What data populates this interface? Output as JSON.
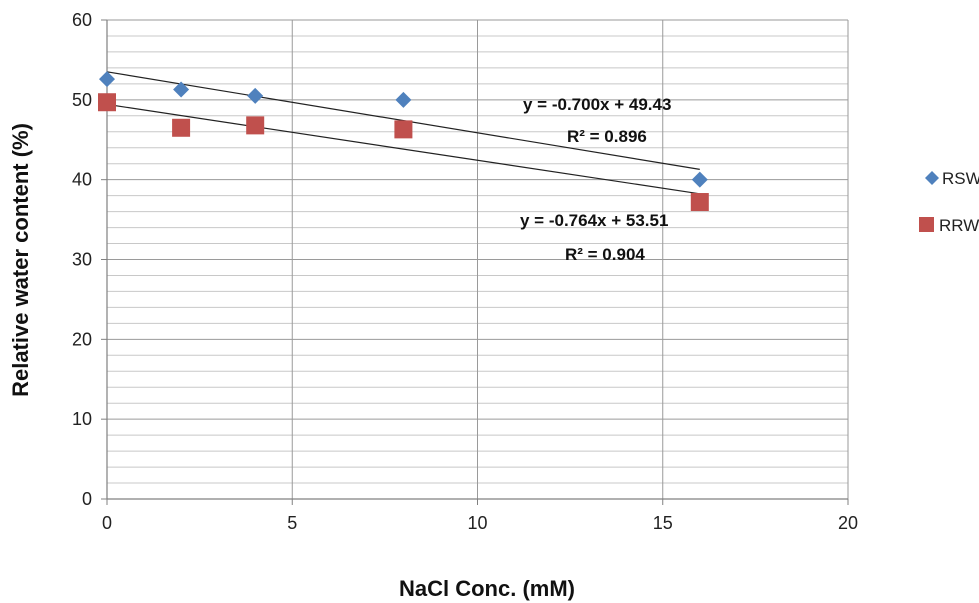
{
  "chart_data": {
    "type": "scatter",
    "title": "",
    "xlabel": "NaCl Conc. (mM)",
    "ylabel": "Relative water content (%)",
    "xlim": [
      0,
      20
    ],
    "ylim": [
      0,
      60
    ],
    "x_ticks": [
      0,
      5,
      10,
      15,
      20
    ],
    "y_ticks": [
      0,
      10,
      20,
      30,
      40,
      50,
      60
    ],
    "y_minor_step": 2,
    "grid": true,
    "legend_position": "right",
    "series": [
      {
        "name": "RSWC",
        "marker": "diamond",
        "color": "#4F81BD",
        "x": [
          0,
          2,
          4,
          8,
          16
        ],
        "y": [
          52.6,
          51.3,
          50.5,
          50.0,
          40.0
        ],
        "trendline": {
          "slope": -0.764,
          "intercept": 53.51,
          "x_range": [
            0,
            16
          ],
          "equation": "y = -0.764x + 53.51",
          "r2": "R² = 0.904"
        }
      },
      {
        "name": "RRWC",
        "marker": "square",
        "color": "#C0504D",
        "x": [
          0,
          2,
          4,
          8,
          16
        ],
        "y": [
          49.7,
          46.5,
          46.8,
          46.3,
          37.2
        ],
        "trendline": {
          "slope": -0.7,
          "intercept": 49.43,
          "x_range": [
            0,
            16
          ],
          "equation": "y = -0.700x + 49.43",
          "r2": "R² = 0.896"
        }
      }
    ]
  }
}
